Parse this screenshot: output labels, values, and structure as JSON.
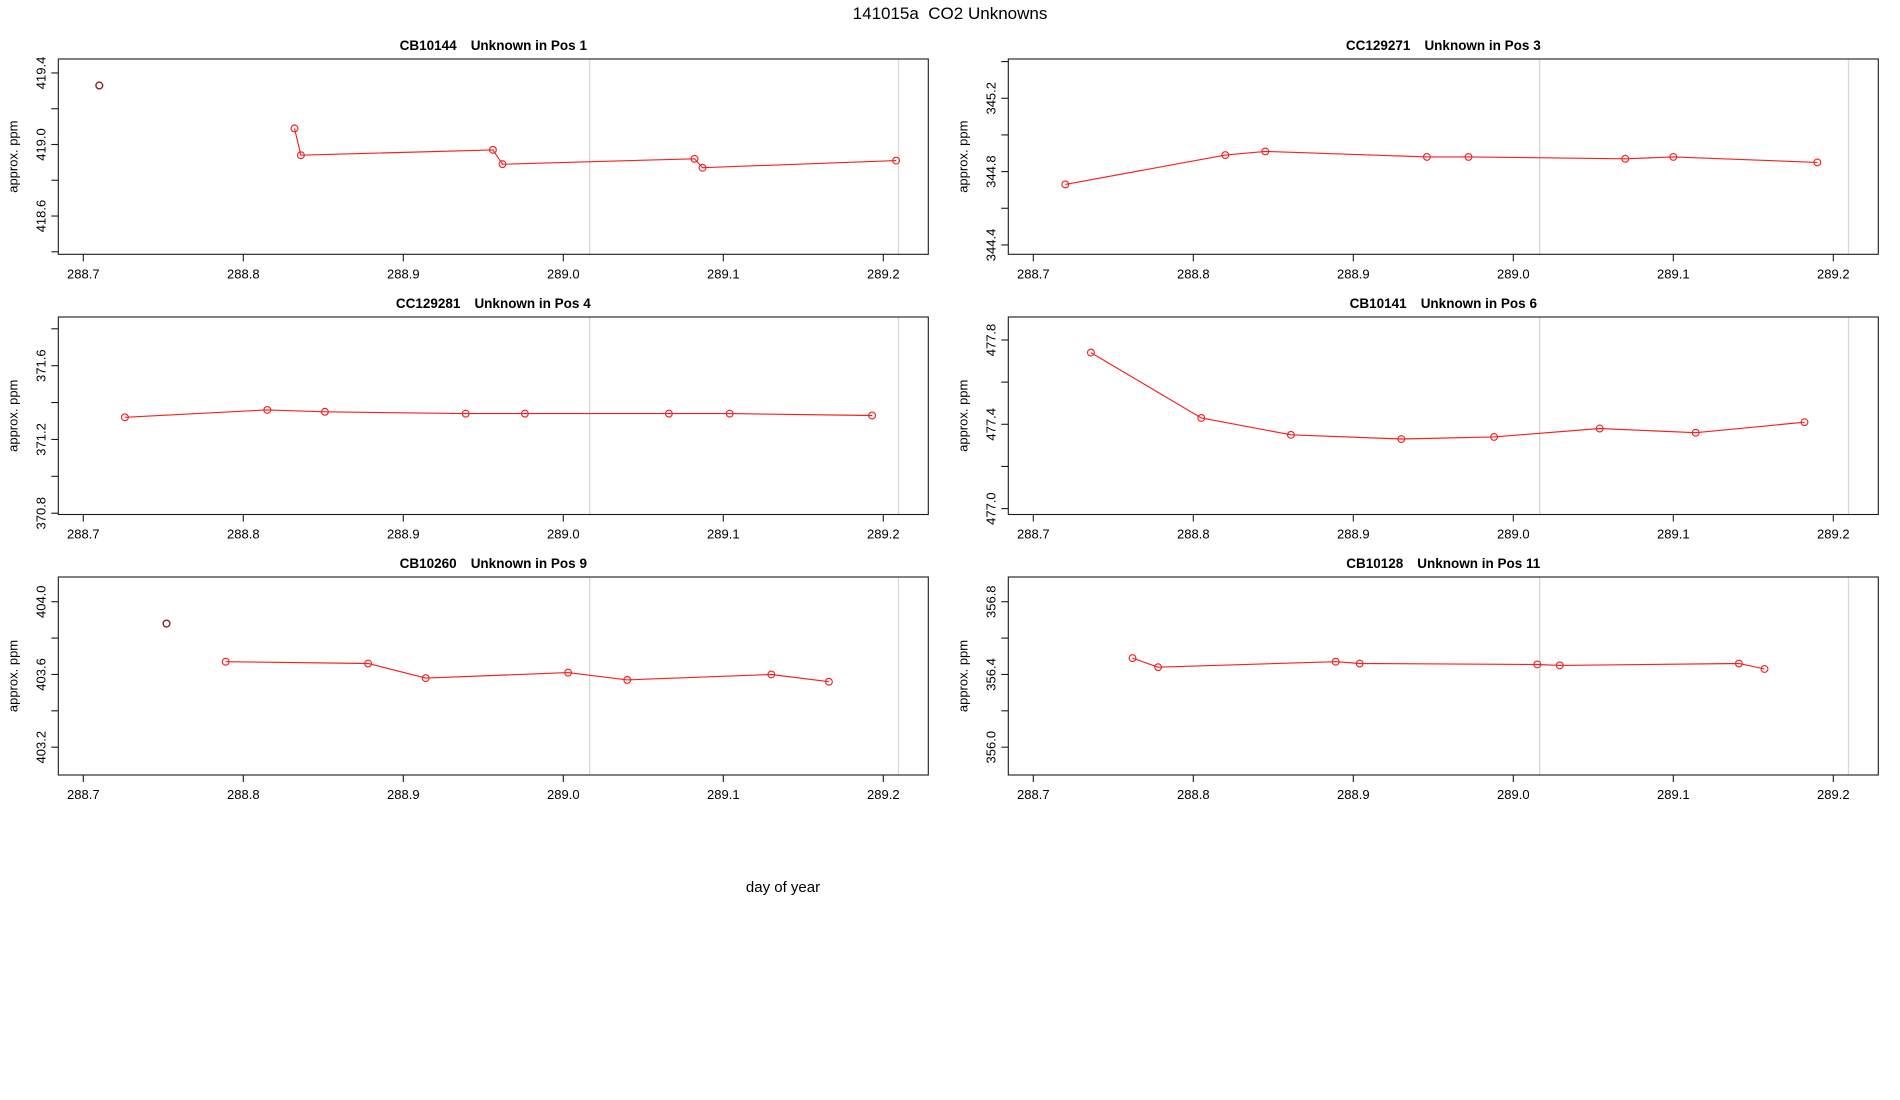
{
  "figure": {
    "title": "141015a  CO2 Unknowns"
  },
  "chart_data": {
    "type": "line",
    "title": "141015a  CO2 Unknowns",
    "xlabel": "day of year",
    "shared": {
      "xlabel": "day of year",
      "ylabel": "approx. ppm",
      "x_ticks": [
        288.7,
        288.8,
        288.9,
        289.0,
        289.1,
        289.2
      ],
      "xlim": [
        288.684,
        289.228
      ],
      "grid_vlines_x": [
        289.0165,
        289.2095
      ],
      "vline_color": "#d9d9d9",
      "line_color": "#f52121",
      "dark_point_color": "#8b2020",
      "axis_color": "#1a1a1a",
      "marker": "open-circle",
      "legend": "none"
    },
    "panels": [
      {
        "sample_id": "CB10144",
        "position_label": "Unknown in Pos 1",
        "ylabel": "approx. ppm",
        "labeled_y_ticks": [
          418.6,
          419.0,
          419.4
        ],
        "minor_y_ticks": [
          418.4,
          418.8,
          419.2
        ],
        "ylim": [
          418.386,
          419.478
        ],
        "first_point_dark": true,
        "x": [
          288.71,
          288.832,
          288.836,
          288.956,
          288.962,
          289.082,
          289.087,
          289.208
        ],
        "y": [
          419.33,
          419.09,
          418.94,
          418.97,
          418.89,
          418.92,
          418.87,
          418.91
        ]
      },
      {
        "sample_id": "CC129271",
        "position_label": "Unknown in Pos 3",
        "ylabel": "approx. ppm",
        "labeled_y_ticks": [
          344.4,
          344.8,
          345.2
        ],
        "minor_y_ticks": [
          344.6,
          345.0,
          345.4
        ],
        "ylim": [
          344.349,
          345.414
        ],
        "first_point_dark": false,
        "x": [
          288.72,
          288.82,
          288.845,
          288.946,
          288.972,
          289.07,
          289.1,
          289.19
        ],
        "y": [
          344.73,
          344.89,
          344.91,
          344.88,
          344.88,
          344.87,
          344.88,
          344.85
        ]
      },
      {
        "sample_id": "CC129281",
        "position_label": "Unknown in Pos 4",
        "ylabel": "approx. ppm",
        "labeled_y_ticks": [
          370.8,
          371.2,
          371.6
        ],
        "minor_y_ticks": [
          371.0,
          371.4,
          371.8
        ],
        "ylim": [
          370.793,
          371.864
        ],
        "first_point_dark": false,
        "x": [
          288.726,
          288.815,
          288.851,
          288.939,
          288.976,
          289.066,
          289.104,
          289.193
        ],
        "y": [
          371.32,
          371.36,
          371.35,
          371.34,
          371.34,
          371.34,
          371.34,
          371.33
        ]
      },
      {
        "sample_id": "CB10141",
        "position_label": "Unknown in Pos 6",
        "ylabel": "approx. ppm",
        "labeled_y_ticks": [
          477.0,
          477.4,
          477.8
        ],
        "minor_y_ticks": [
          477.2,
          477.6
        ],
        "ylim": [
          476.972,
          477.909
        ],
        "first_point_dark": false,
        "x": [
          288.736,
          288.805,
          288.861,
          288.93,
          288.988,
          289.054,
          289.114,
          289.182
        ],
        "y": [
          477.74,
          477.43,
          477.35,
          477.33,
          477.34,
          477.38,
          477.36,
          477.41
        ]
      },
      {
        "sample_id": "CB10260",
        "position_label": "Unknown in Pos 9",
        "ylabel": "approx. ppm",
        "labeled_y_ticks": [
          403.2,
          403.6,
          404.0
        ],
        "minor_y_ticks": [
          403.4,
          403.8
        ],
        "ylim": [
          403.047,
          404.136
        ],
        "first_point_dark": true,
        "x": [
          288.752,
          288.789,
          288.878,
          288.914,
          289.003,
          289.04,
          289.13,
          289.166
        ],
        "y": [
          403.88,
          403.67,
          403.66,
          403.58,
          403.61,
          403.57,
          403.6,
          403.56
        ]
      },
      {
        "sample_id": "CB10128",
        "position_label": "Unknown in Pos 11",
        "ylabel": "approx. ppm",
        "labeled_y_ticks": [
          356.0,
          356.4,
          356.8
        ],
        "minor_y_ticks": [
          356.2,
          356.6
        ],
        "ylim": [
          355.847,
          356.936
        ],
        "first_point_dark": false,
        "x": [
          288.762,
          288.778,
          288.889,
          288.904,
          289.015,
          289.029,
          289.141,
          289.157
        ],
        "y": [
          356.49,
          356.44,
          356.47,
          356.46,
          356.455,
          356.45,
          356.46,
          356.43
        ]
      }
    ]
  }
}
